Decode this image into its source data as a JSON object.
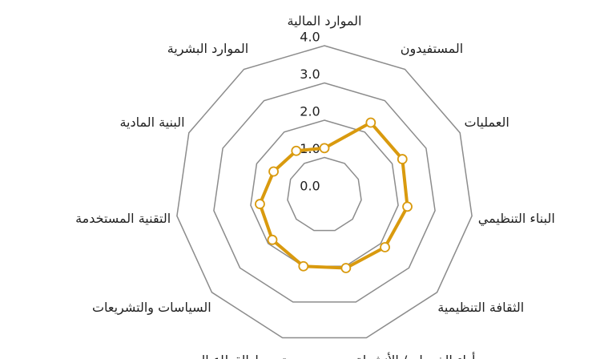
{
  "chart_data": {
    "type": "radar",
    "categories": [
      "الموارد المالية",
      "المستفيدون",
      "العمليات",
      "البناء التنظيمي",
      "الثقافة التنظيمية",
      "أداء الخدمات/ الأنشطة",
      "متوسط القطاع الصحي",
      "السياسات والتشريعات",
      "التقنية المستخدمة",
      "البنية المادية",
      "الموارد البشرية"
    ],
    "values": [
      1.25,
      2.3,
      2.3,
      2.25,
      2.15,
      2.05,
      2.0,
      1.85,
      1.75,
      1.5,
      1.4
    ],
    "color": "#d99a0e",
    "ylim": [
      0,
      4
    ],
    "yticks": [
      {
        "value": 0,
        "label": "0.0"
      },
      {
        "value": 1,
        "label": "1.0"
      },
      {
        "value": 2,
        "label": "2.0"
      },
      {
        "value": 3,
        "label": "3.0"
      },
      {
        "value": 4,
        "label": "4.0"
      }
    ],
    "grid": true
  }
}
